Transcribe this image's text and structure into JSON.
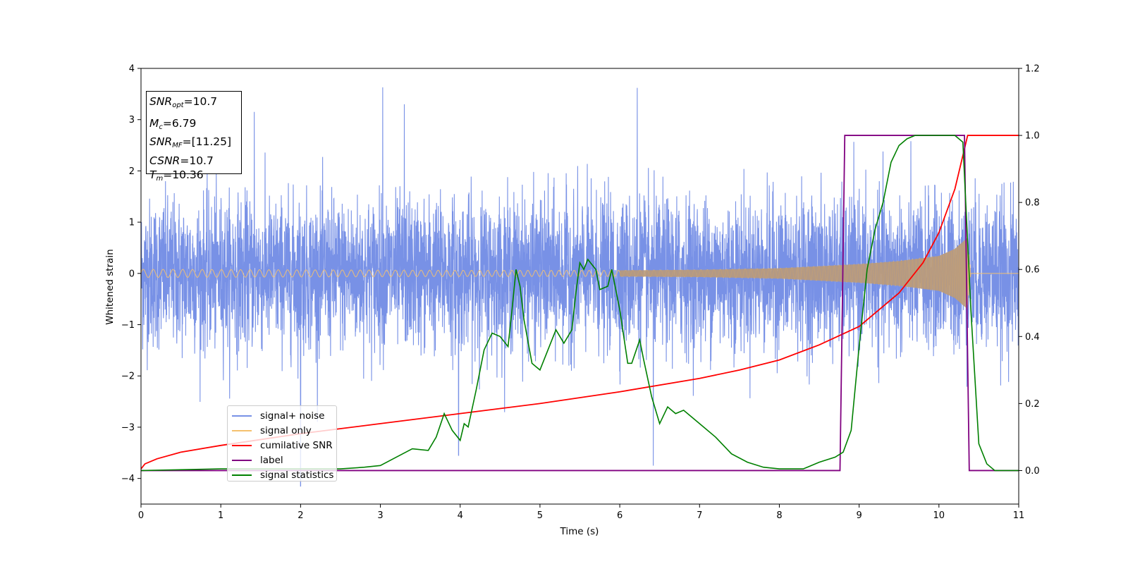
{
  "chart_data": {
    "type": "line",
    "xlabel": "Time (s)",
    "ylabel": "Whitened strain",
    "xlim": [
      0,
      11
    ],
    "ylim_left": [
      -4.5,
      4
    ],
    "ylim_right": [
      -0.1,
      1.2
    ],
    "x_ticks": [
      0,
      1,
      2,
      3,
      4,
      5,
      6,
      7,
      8,
      9,
      10,
      11
    ],
    "y_ticks_left": [
      "4",
      "3",
      "2",
      "1",
      "0",
      "−1",
      "−2",
      "−3",
      "−4"
    ],
    "y_ticks_left_values": [
      4,
      3,
      2,
      1,
      0,
      -1,
      -2,
      -3,
      -4
    ],
    "y_ticks_right": [
      "1.2",
      "1.0",
      "0.8",
      "0.6",
      "0.4",
      "0.2",
      "0.0"
    ],
    "y_ticks_right_values": [
      1.2,
      1.0,
      0.8,
      0.6,
      0.4,
      0.2,
      0.0
    ],
    "grid": false,
    "legend_position": "lower-left",
    "annotation": {
      "snr_opt": "10.7",
      "mc": "6.79",
      "snr_mf": "[11.25]",
      "csnr": "10.7",
      "tm": "10.36"
    },
    "series": [
      {
        "name": "signal+ noise",
        "color": "#7891e6",
        "axis": "left",
        "description_envelope": {
          "x": [
            0,
            1,
            2,
            3,
            4,
            5,
            6,
            7,
            8,
            9,
            10,
            11
          ],
          "typical_abs": [
            1.8,
            1.8,
            1.8,
            1.8,
            1.8,
            1.8,
            1.8,
            1.8,
            1.8,
            1.8,
            1.8,
            1.8
          ]
        },
        "peaks": [
          {
            "x": 2.0,
            "y": -4.15
          },
          {
            "x": 3.03,
            "y": 3.63
          },
          {
            "x": 6.22,
            "y": 3.62
          },
          {
            "x": 6.42,
            "y": -3.75
          },
          {
            "x": 1.42,
            "y": 3.15
          },
          {
            "x": 3.3,
            "y": 3.3
          },
          {
            "x": 3.98,
            "y": -3.55
          }
        ]
      },
      {
        "name": "signal only",
        "color": "#f5c16e",
        "axis": "left",
        "amplitude": {
          "x": [
            0,
            2,
            4,
            6,
            7,
            8,
            8.5,
            9,
            9.5,
            10,
            10.2,
            10.36,
            10.4,
            11
          ],
          "a": [
            0.08,
            0.07,
            0.06,
            0.06,
            0.07,
            0.1,
            0.14,
            0.18,
            0.24,
            0.34,
            0.48,
            0.7,
            0.0,
            0.0
          ]
        }
      },
      {
        "name": "cumilative SNR",
        "color": "#ff0000",
        "axis": "right",
        "x": [
          0,
          0.05,
          0.2,
          0.5,
          1,
          2,
          3,
          4,
          5,
          6,
          7,
          7.5,
          8,
          8.5,
          9,
          9.5,
          9.8,
          10,
          10.2,
          10.36,
          11
        ],
        "y": [
          0.005,
          0.02,
          0.035,
          0.055,
          0.075,
          0.11,
          0.14,
          0.17,
          0.2,
          0.235,
          0.275,
          0.3,
          0.33,
          0.375,
          0.43,
          0.53,
          0.62,
          0.71,
          0.84,
          1.0,
          1.0
        ]
      },
      {
        "name": "label",
        "color": "#800080",
        "axis": "right",
        "x": [
          0,
          8.76,
          8.82,
          10.32,
          10.38,
          11
        ],
        "y": [
          0,
          0,
          1.0,
          1.0,
          0,
          0
        ]
      },
      {
        "name": "signal statistics",
        "color": "#008000",
        "axis": "right",
        "x": [
          0,
          1,
          2,
          2.5,
          2.8,
          3.0,
          3.2,
          3.4,
          3.6,
          3.7,
          3.8,
          3.9,
          4.0,
          4.05,
          4.1,
          4.2,
          4.3,
          4.4,
          4.5,
          4.6,
          4.65,
          4.7,
          4.75,
          4.8,
          4.9,
          5.0,
          5.1,
          5.2,
          5.3,
          5.4,
          5.45,
          5.5,
          5.55,
          5.6,
          5.7,
          5.75,
          5.85,
          5.9,
          6.0,
          6.1,
          6.15,
          6.25,
          6.3,
          6.4,
          6.5,
          6.6,
          6.7,
          6.8,
          6.9,
          7.0,
          7.2,
          7.4,
          7.6,
          7.8,
          8.0,
          8.3,
          8.5,
          8.7,
          8.8,
          8.9,
          9.0,
          9.1,
          9.2,
          9.3,
          9.4,
          9.5,
          9.6,
          9.7,
          9.8,
          10.0,
          10.2,
          10.3,
          10.4,
          10.5,
          10.6,
          10.7,
          11
        ],
        "y": [
          0.0,
          0.005,
          0.005,
          0.005,
          0.01,
          0.015,
          0.04,
          0.065,
          0.06,
          0.1,
          0.17,
          0.12,
          0.09,
          0.14,
          0.13,
          0.24,
          0.36,
          0.41,
          0.4,
          0.37,
          0.48,
          0.6,
          0.55,
          0.45,
          0.32,
          0.3,
          0.36,
          0.42,
          0.38,
          0.42,
          0.53,
          0.62,
          0.6,
          0.63,
          0.6,
          0.54,
          0.55,
          0.6,
          0.48,
          0.32,
          0.32,
          0.39,
          0.33,
          0.22,
          0.14,
          0.19,
          0.17,
          0.18,
          0.16,
          0.14,
          0.1,
          0.05,
          0.025,
          0.01,
          0.005,
          0.005,
          0.025,
          0.04,
          0.055,
          0.12,
          0.37,
          0.6,
          0.72,
          0.8,
          0.92,
          0.97,
          0.99,
          1.0,
          1.0,
          1.0,
          1.0,
          0.98,
          0.48,
          0.08,
          0.02,
          0.0,
          0.0
        ]
      }
    ]
  },
  "colors": {
    "noise": "#7891e6",
    "signal": "#f5c16e",
    "overlap": "#b99a7a",
    "csnr": "#ff0000",
    "label": "#800080",
    "stats": "#008000"
  }
}
